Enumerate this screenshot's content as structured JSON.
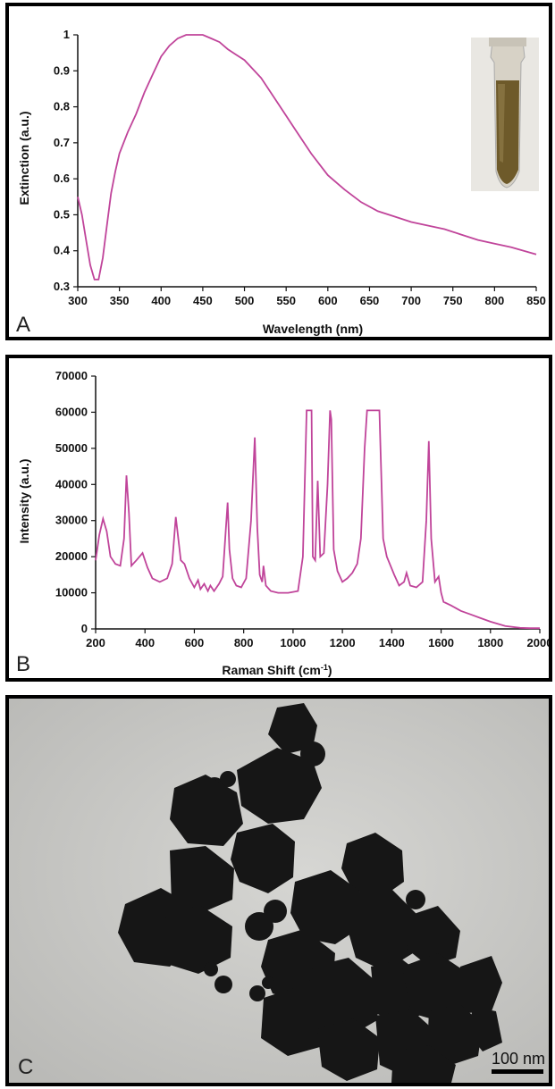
{
  "chart_data": [
    {
      "type": "line",
      "panel_label": "A",
      "xlabel": "Wavelength (nm)",
      "ylabel": "Extinction (a.u.)",
      "xlim": [
        300,
        850
      ],
      "ylim": [
        0.3,
        1.0
      ],
      "xticks": [
        300,
        350,
        400,
        450,
        500,
        550,
        600,
        650,
        700,
        750,
        800,
        850
      ],
      "yticks": [
        "0.3",
        "0.4",
        "0.5",
        "0.6",
        "0.7",
        "0.8",
        "0.9",
        "1"
      ],
      "line_color": "#c0449a",
      "inset": "photo of a cuvette containing brown nanoparticle solution",
      "series": [
        {
          "x": [
            300,
            305,
            310,
            315,
            320,
            325,
            330,
            335,
            340,
            345,
            350,
            360,
            370,
            380,
            390,
            400,
            410,
            420,
            430,
            440,
            450,
            460,
            470,
            480,
            490,
            500,
            520,
            540,
            560,
            580,
            600,
            620,
            640,
            660,
            680,
            700,
            720,
            740,
            760,
            780,
            800,
            820,
            850
          ],
          "y": [
            0.55,
            0.5,
            0.43,
            0.36,
            0.32,
            0.32,
            0.38,
            0.47,
            0.56,
            0.62,
            0.67,
            0.73,
            0.78,
            0.84,
            0.89,
            0.94,
            0.97,
            0.99,
            1.0,
            1.0,
            1.0,
            0.99,
            0.98,
            0.96,
            0.945,
            0.93,
            0.88,
            0.81,
            0.74,
            0.67,
            0.61,
            0.57,
            0.535,
            0.51,
            0.495,
            0.48,
            0.47,
            0.46,
            0.445,
            0.43,
            0.42,
            0.41,
            0.39
          ]
        }
      ]
    },
    {
      "type": "line",
      "panel_label": "B",
      "xlabel": "Raman Shift (cm",
      "xlabel_sup": "-1",
      "xlabel_end": ")",
      "ylabel": "Intensity (a.u.)",
      "xlim": [
        200,
        2000
      ],
      "ylim": [
        0,
        70000
      ],
      "xticks": [
        200,
        400,
        600,
        800,
        1000,
        1200,
        1400,
        1600,
        1800,
        2000
      ],
      "yticks": [
        "0",
        "10000",
        "20000",
        "30000",
        "40000",
        "50000",
        "60000",
        "70000"
      ],
      "line_color": "#c0449a",
      "series": [
        {
          "x": [
            200,
            215,
            230,
            245,
            260,
            280,
            300,
            315,
            325,
            335,
            345,
            365,
            390,
            410,
            430,
            460,
            490,
            510,
            525,
            535,
            545,
            560,
            580,
            600,
            615,
            625,
            640,
            655,
            665,
            680,
            700,
            715,
            728,
            735,
            742,
            755,
            770,
            790,
            810,
            830,
            845,
            855,
            865,
            875,
            880,
            890,
            910,
            940,
            980,
            1020,
            1040,
            1055,
            1060,
            1075,
            1080,
            1090,
            1100,
            1110,
            1125,
            1140,
            1150,
            1155,
            1165,
            1180,
            1200,
            1220,
            1240,
            1260,
            1275,
            1290,
            1300,
            1340,
            1350,
            1365,
            1380,
            1395,
            1410,
            1430,
            1450,
            1460,
            1475,
            1500,
            1525,
            1540,
            1550,
            1560,
            1575,
            1590,
            1600,
            1610,
            1640,
            1680,
            1720,
            1760,
            1800,
            1860,
            1920,
            1960,
            2000
          ],
          "y": [
            19000,
            26000,
            30500,
            27000,
            20000,
            18000,
            17500,
            25000,
            42500,
            32000,
            17500,
            19000,
            21000,
            17000,
            14000,
            13000,
            14000,
            18000,
            31000,
            25000,
            19000,
            18000,
            14000,
            11500,
            13500,
            11000,
            12500,
            10500,
            12000,
            10500,
            12500,
            14500,
            28000,
            35000,
            22000,
            14000,
            12000,
            11500,
            14000,
            30000,
            53000,
            28000,
            15000,
            13000,
            17500,
            12000,
            10500,
            10000,
            10000,
            10500,
            20000,
            60500,
            60500,
            60500,
            20000,
            19000,
            41000,
            20000,
            21000,
            40000,
            60500,
            58000,
            22000,
            16000,
            13000,
            14000,
            15500,
            18000,
            25000,
            50000,
            60500,
            60500,
            60500,
            25000,
            20000,
            17500,
            15000,
            12000,
            13000,
            15500,
            12000,
            11500,
            13000,
            30000,
            52000,
            25000,
            13000,
            14500,
            10000,
            7500,
            6500,
            5000,
            4000,
            3000,
            2000,
            800,
            300,
            200,
            200
          ]
        }
      ]
    },
    {
      "type": "image",
      "panel_label": "C",
      "description": "TEM micrograph of aggregated polyhedral nanoparticles",
      "scale_bar": "100 nm"
    }
  ]
}
